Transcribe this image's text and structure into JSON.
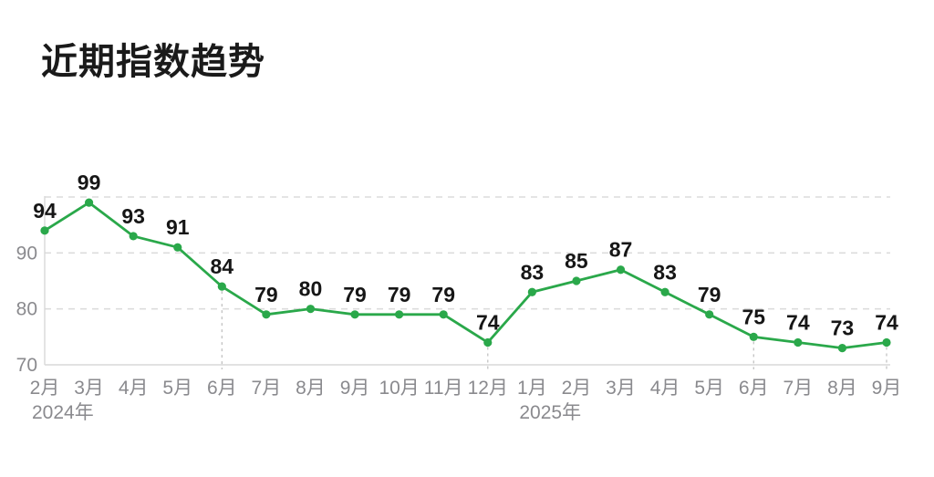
{
  "page": {
    "title": "近期指数趋势"
  },
  "colors": {
    "line": "#2aa84a",
    "point": "#2aa84a",
    "value_label": "#161616",
    "axis_text": "#8a8a8e",
    "grid_line": "#dcdcdc",
    "axis_line": "#d8d8d8",
    "dropline": "#bdbdbd",
    "background": "#ffffff",
    "title_text": "#1a1a1a"
  },
  "chart_data": {
    "type": "line",
    "title": "近期指数趋势",
    "x": [
      "2月",
      "3月",
      "4月",
      "5月",
      "6月",
      "7月",
      "8月",
      "9月",
      "10月",
      "11月",
      "12月",
      "1月",
      "2月",
      "3月",
      "4月",
      "5月",
      "6月",
      "7月",
      "8月",
      "9月"
    ],
    "values": [
      94,
      99,
      93,
      91,
      84,
      79,
      80,
      79,
      79,
      79,
      74,
      83,
      85,
      87,
      83,
      79,
      75,
      74,
      73,
      74
    ],
    "year_labels": [
      {
        "text": "2024年",
        "at_index": 0
      },
      {
        "text": "2025年",
        "at_index": 11
      }
    ],
    "xlabel": "",
    "ylabel": "",
    "ylim": [
      70,
      100
    ],
    "y_tick_labels": [
      70,
      80,
      90
    ],
    "gridline_values": [
      80,
      90,
      100
    ],
    "gridline_style": "dashed",
    "dropline_indices": [
      4,
      10,
      16,
      19
    ],
    "point_labels_visible": true,
    "legend": "none"
  }
}
